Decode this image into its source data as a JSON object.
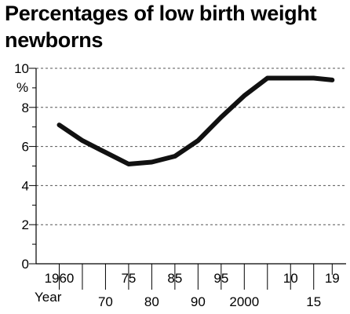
{
  "chart_data": {
    "type": "line",
    "title": "Percentages of low birth weight newborns",
    "ylabel": "%",
    "xlabel": "Year",
    "ylim": [
      0,
      10
    ],
    "yticks": [
      "0",
      "2",
      "4",
      "6",
      "8",
      "10"
    ],
    "xticks_upper": [
      "1960",
      "75",
      "85",
      "95",
      "10",
      "19"
    ],
    "xticks_lower": [
      "70",
      "80",
      "90",
      "2000",
      "15"
    ],
    "grid": true,
    "x": [
      1960,
      1965,
      1970,
      1975,
      1980,
      1985,
      1990,
      1995,
      2000,
      2005,
      2010,
      2015,
      2019
    ],
    "series": [
      {
        "values": [
          7.1,
          6.3,
          5.7,
          5.1,
          5.2,
          5.5,
          6.3,
          7.5,
          8.6,
          9.5,
          9.5,
          9.5,
          9.4
        ]
      }
    ]
  }
}
